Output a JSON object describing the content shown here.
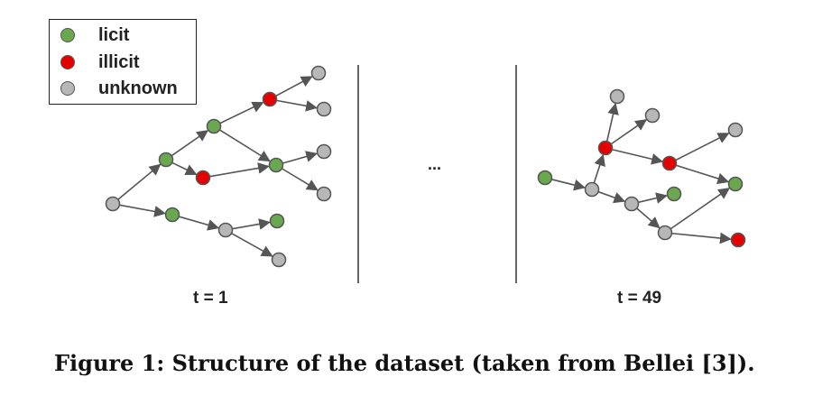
{
  "colors": {
    "licit": "#6aa84f",
    "illicit": "#e60000",
    "unknown": "#b7b7b7",
    "node_stroke": "#555555",
    "edge": "#555555"
  },
  "legend": [
    {
      "label": "licit",
      "status": "licit"
    },
    {
      "label": "illicit",
      "status": "illicit"
    },
    {
      "label": "unknown",
      "status": "unknown"
    }
  ],
  "panels": [
    {
      "label": "t = 1",
      "nodes": [
        {
          "id": "a",
          "status": "unknown"
        },
        {
          "id": "b",
          "status": "licit"
        },
        {
          "id": "c",
          "status": "licit"
        },
        {
          "id": "d",
          "status": "illicit"
        },
        {
          "id": "e",
          "status": "illicit"
        },
        {
          "id": "f",
          "status": "unknown"
        },
        {
          "id": "g",
          "status": "unknown"
        },
        {
          "id": "h",
          "status": "licit"
        },
        {
          "id": "i",
          "status": "unknown"
        },
        {
          "id": "j",
          "status": "unknown"
        },
        {
          "id": "k",
          "status": "licit"
        },
        {
          "id": "l",
          "status": "unknown"
        },
        {
          "id": "m",
          "status": "licit"
        },
        {
          "id": "n",
          "status": "unknown"
        }
      ],
      "edges": [
        [
          "a",
          "b"
        ],
        [
          "b",
          "c"
        ],
        [
          "c",
          "e"
        ],
        [
          "e",
          "f"
        ],
        [
          "e",
          "g"
        ],
        [
          "b",
          "d"
        ],
        [
          "d",
          "h"
        ],
        [
          "c",
          "h"
        ],
        [
          "h",
          "i"
        ],
        [
          "h",
          "j"
        ],
        [
          "a",
          "k"
        ],
        [
          "k",
          "l"
        ],
        [
          "l",
          "m"
        ],
        [
          "l",
          "n"
        ]
      ]
    },
    {
      "label": "t = 49",
      "nodes": [
        {
          "id": "p",
          "status": "licit"
        },
        {
          "id": "q",
          "status": "unknown"
        },
        {
          "id": "r",
          "status": "illicit"
        },
        {
          "id": "s",
          "status": "unknown"
        },
        {
          "id": "u",
          "status": "unknown"
        },
        {
          "id": "v",
          "status": "illicit"
        },
        {
          "id": "w",
          "status": "unknown"
        },
        {
          "id": "x",
          "status": "licit"
        },
        {
          "id": "y",
          "status": "unknown"
        },
        {
          "id": "z",
          "status": "licit"
        },
        {
          "id": "aa",
          "status": "unknown"
        },
        {
          "id": "bb",
          "status": "illicit"
        }
      ],
      "edges": [
        [
          "p",
          "q"
        ],
        [
          "q",
          "r"
        ],
        [
          "r",
          "s"
        ],
        [
          "r",
          "u"
        ],
        [
          "r",
          "v"
        ],
        [
          "v",
          "w"
        ],
        [
          "v",
          "x"
        ],
        [
          "q",
          "y"
        ],
        [
          "y",
          "z"
        ],
        [
          "y",
          "aa"
        ],
        [
          "aa",
          "x"
        ],
        [
          "aa",
          "bb"
        ]
      ]
    }
  ],
  "ellipsis": "...",
  "caption": "Figure 1: Structure of the dataset (taken from Bellei [3])."
}
